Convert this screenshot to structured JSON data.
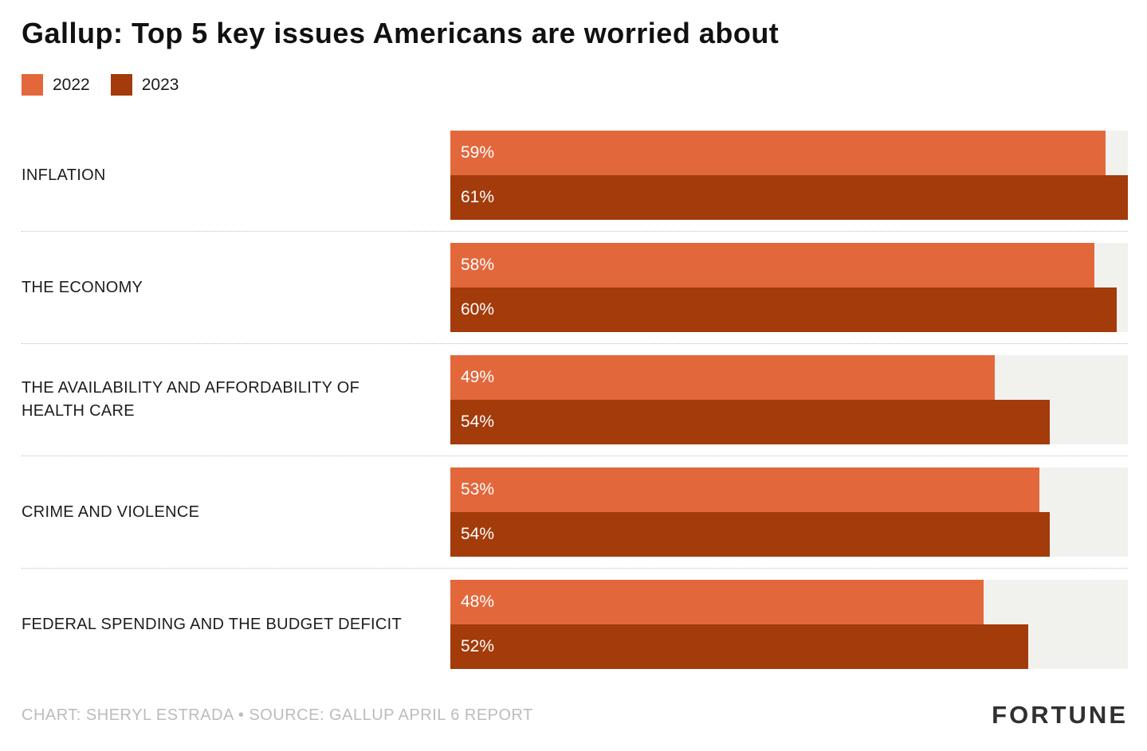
{
  "chart_data": {
    "type": "bar",
    "orientation": "horizontal",
    "title": "Gallup: Top 5 key issues Americans are worried about",
    "categories": [
      "INFLATION",
      "THE ECONOMY",
      "THE AVAILABILITY AND AFFORDABILITY OF HEALTH CARE",
      "CRIME AND VIOLENCE",
      "FEDERAL SPENDING AND THE BUDGET DEFICIT"
    ],
    "series": [
      {
        "name": "2022",
        "color": "#E2683C",
        "values": [
          59,
          58,
          49,
          53,
          48
        ]
      },
      {
        "name": "2023",
        "color": "#A33B0B",
        "values": [
          61,
          60,
          54,
          54,
          52
        ]
      }
    ],
    "value_suffix": "%",
    "xlim": [
      0,
      61
    ],
    "grid": false,
    "legend_position": "top-left",
    "track_color": "#F1F1EE"
  },
  "footer": {
    "credit": "CHART: SHERYL ESTRADA • SOURCE: GALLUP APRIL 6 REPORT",
    "logo": "FORTUNE"
  }
}
